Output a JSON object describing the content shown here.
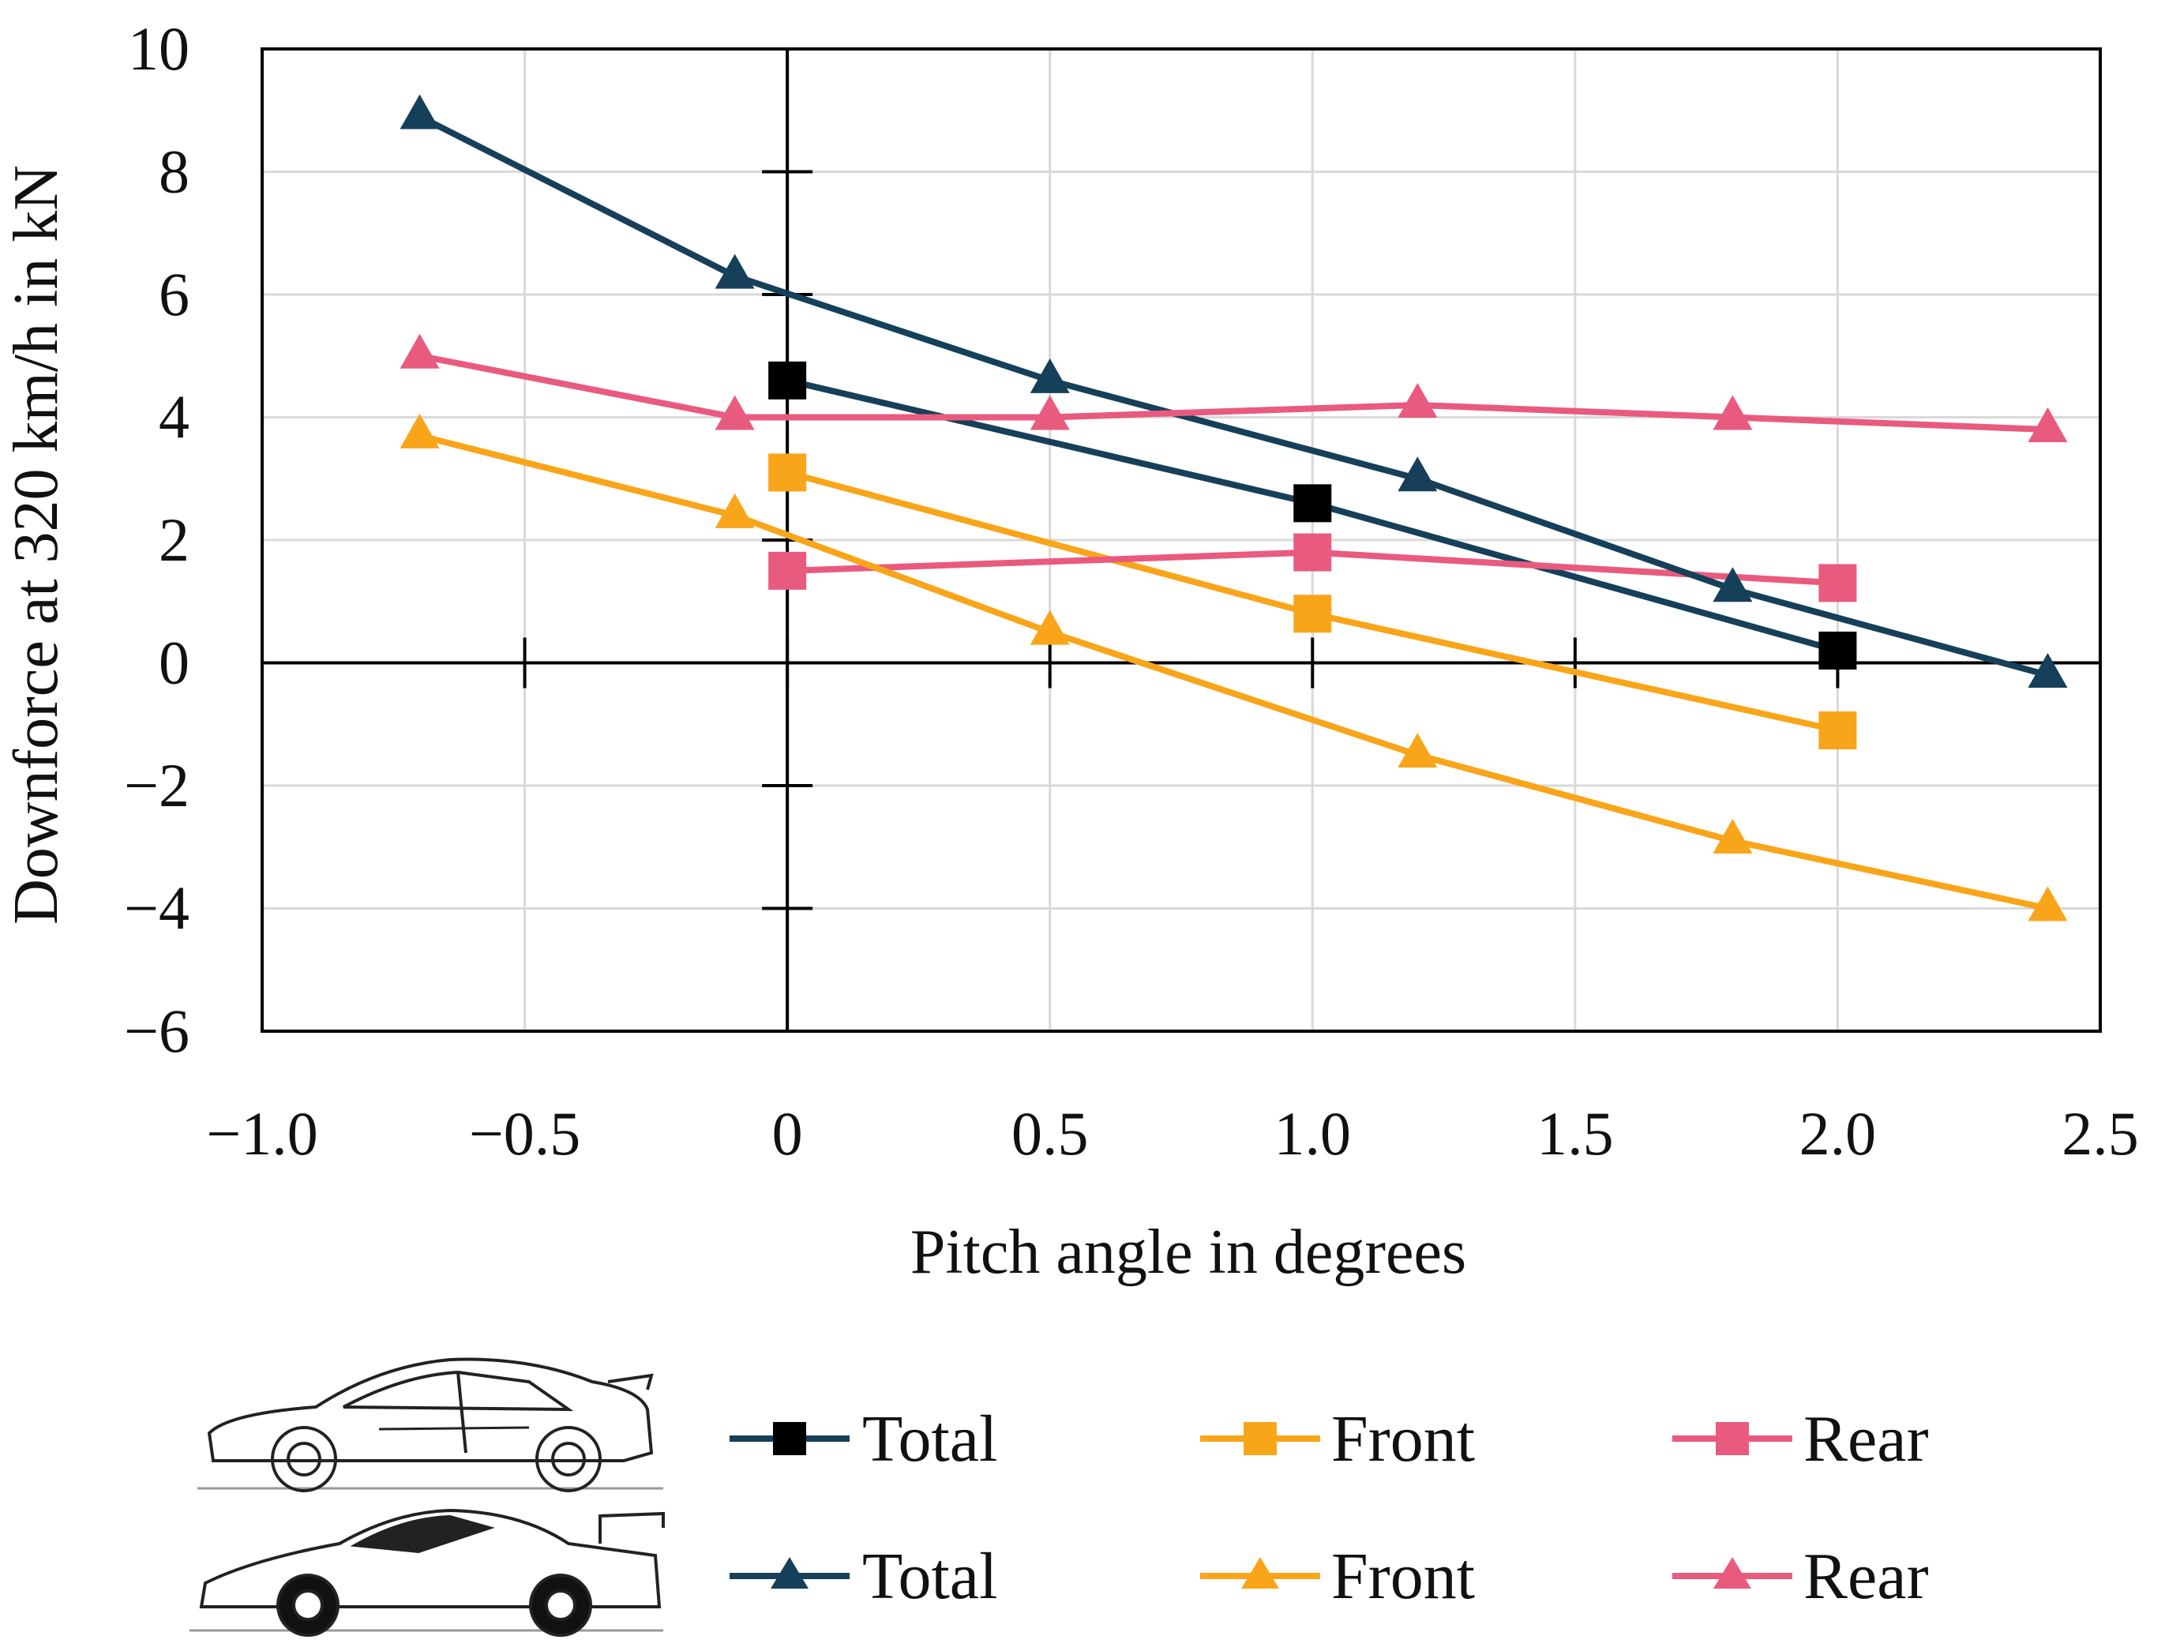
{
  "chart_data": {
    "type": "line",
    "title": "",
    "xlabel": "Pitch angle in degrees",
    "ylabel": "Downforce at 320 km/h in kN",
    "xlim": [
      -1.0,
      2.5
    ],
    "ylim": [
      -6,
      10
    ],
    "x_ticks": [
      -1.0,
      -0.5,
      0,
      0.5,
      1.0,
      1.5,
      2.0,
      2.5
    ],
    "x_tick_labels": [
      "−1.0",
      "−0.5",
      "0",
      "0.5",
      "1.0",
      "1.5",
      "2.0",
      "2.5"
    ],
    "y_ticks": [
      -6,
      -4,
      -2,
      0,
      2,
      4,
      6,
      8,
      10
    ],
    "y_tick_labels": [
      "−6",
      "−4",
      "−2",
      "0",
      "2",
      "4",
      "6",
      "8",
      "10"
    ],
    "grid": true,
    "legend_position": "bottom",
    "series": [
      {
        "name": "Total",
        "vehicle": "road-car",
        "marker": "square",
        "color": "#16405a",
        "marker_color": "#000000",
        "x": [
          0,
          1.0,
          2.0
        ],
        "y": [
          4.6,
          2.6,
          0.2
        ]
      },
      {
        "name": "Front",
        "vehicle": "road-car",
        "marker": "square",
        "color": "#f9a51a",
        "marker_color": "#f9a51a",
        "x": [
          0,
          1.0,
          2.0
        ],
        "y": [
          3.1,
          0.8,
          -1.1
        ]
      },
      {
        "name": "Rear",
        "vehicle": "road-car",
        "marker": "square",
        "color": "#e95b7e",
        "marker_color": "#e95b7e",
        "x": [
          0,
          1.0,
          2.0
        ],
        "y": [
          1.5,
          1.8,
          1.3
        ]
      },
      {
        "name": "Total",
        "vehicle": "race-car",
        "marker": "triangle",
        "color": "#16405a",
        "marker_color": "#16405a",
        "x": [
          -0.7,
          -0.1,
          0.5,
          1.2,
          1.8,
          2.4
        ],
        "y": [
          8.9,
          6.3,
          4.6,
          3.0,
          1.2,
          -0.2
        ]
      },
      {
        "name": "Front",
        "vehicle": "race-car",
        "marker": "triangle",
        "color": "#f9a51a",
        "marker_color": "#f9a51a",
        "x": [
          -0.7,
          -0.1,
          0.5,
          1.2,
          1.8,
          2.4
        ],
        "y": [
          3.7,
          2.4,
          0.5,
          -1.5,
          -2.9,
          -4.0
        ]
      },
      {
        "name": "Rear",
        "vehicle": "race-car",
        "marker": "triangle",
        "color": "#e95b7e",
        "marker_color": "#e95b7e",
        "x": [
          -0.7,
          -0.1,
          0.5,
          1.2,
          1.8,
          2.4
        ],
        "y": [
          5.0,
          4.0,
          4.0,
          4.2,
          4.0,
          3.8
        ]
      }
    ]
  }
}
